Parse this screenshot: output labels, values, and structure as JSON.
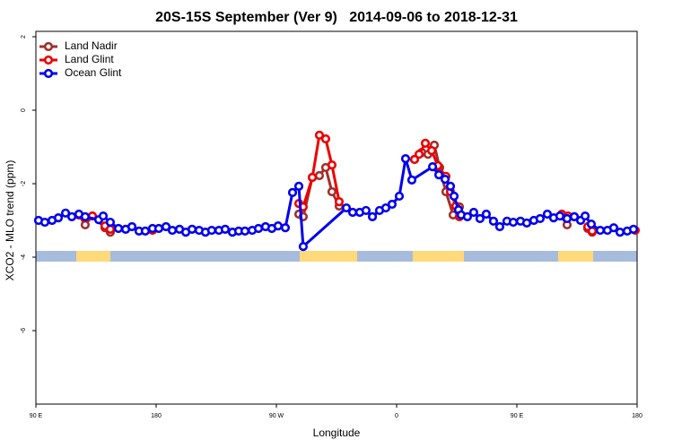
{
  "chart_data": {
    "type": "line",
    "title": "20S-15S September (Ver 9)   2014-09-06 to 2018-12-31",
    "xlabel": "Longitude",
    "ylabel": "XCO2 - MLO trend (ppm)",
    "xlim": [
      90,
      540
    ],
    "xticks": [
      {
        "value": 90,
        "label": "90 E"
      },
      180,
      {
        "value": 270,
        "label": "90 W"
      },
      {
        "value": 360,
        "label": "0"
      },
      {
        "value": 450,
        "label": "90 E"
      },
      {
        "value": 540,
        "label": "180"
      }
    ],
    "ylim": [
      -8,
      2
    ],
    "yticks": [
      2,
      0,
      -2,
      -4,
      -6
    ],
    "legend": "top-left",
    "series": [
      {
        "name": "Land Nadir",
        "color": "#a0302c",
        "x": [
          122.2,
          126.9,
          132.3,
          141.7,
          145.7,
          null,
          286.8,
          290.1,
          296.9,
          302.2,
          306.9,
          311.6,
          317.0,
          null,
          373.4,
          378.8,
          383.5,
          388.2,
          392.2,
          396.9,
          402.3,
          407.0,
          null,
          482.9,
          487.6,
          null,
          503.1,
          506.4
        ],
        "values": [
          -2.85,
          -3.12,
          -2.88,
          -3.2,
          -3.32,
          null,
          -2.83,
          -2.9,
          -1.83,
          -1.78,
          -1.56,
          -2.22,
          -2.61,
          null,
          -1.34,
          -1.15,
          -1.2,
          -0.95,
          -1.56,
          -2.22,
          -2.85,
          -2.63,
          null,
          -2.88,
          -3.12,
          null,
          -3.22,
          -3.32
        ]
      },
      {
        "name": "Land Glint",
        "color": "#ee0000",
        "x": [
          122.2,
          126.9,
          132.3,
          141.7,
          145.7,
          null,
          177.3,
          null,
          286.8,
          290.1,
          296.9,
          302.2,
          306.9,
          311.6,
          317.0,
          null,
          373.4,
          376.8,
          381.5,
          386.2,
          390.9,
          396.9,
          400.3,
          404.3,
          407.0,
          null,
          483.6,
          488.3,
          493.0,
          null,
          503.1,
          506.4,
          null,
          538.6
        ],
        "values": [
          -2.85,
          -2.93,
          -2.88,
          -3.15,
          -3.24,
          null,
          -3.27,
          null,
          -2.54,
          -2.63,
          -1.83,
          -0.68,
          -0.78,
          -1.49,
          -2.49,
          null,
          -1.34,
          -1.2,
          -0.9,
          -1.1,
          -1.51,
          -1.8,
          -2.22,
          -2.61,
          -2.9,
          null,
          -2.83,
          -2.88,
          -2.9,
          null,
          -3.17,
          -3.29,
          null,
          -3.27
        ]
      },
      {
        "name": "Ocean Glint",
        "color": "#0000ee",
        "x": [
          92.0,
          96.7,
          102.1,
          106.8,
          112.2,
          116.9,
          122.2,
          126.9,
          137.0,
          140.4,
          145.7,
          151.8,
          157.2,
          161.9,
          167.2,
          171.9,
          177.3,
          182.0,
          187.4,
          192.1,
          197.5,
          202.2,
          206.9,
          212.2,
          216.9,
          221.6,
          227.0,
          231.7,
          237.1,
          241.8,
          246.5,
          251.9,
          256.6,
          261.9,
          266.6,
          271.3,
          276.7,
          282.1,
          286.8,
          290.1,
          322.4,
          327.1,
          332.4,
          337.1,
          341.9,
          347.2,
          351.9,
          356.6,
          362.0,
          366.7,
          371.4,
          386.9,
          391.6,
          396.3,
          400.3,
          403.0,
          406.3,
          408.3,
          413.0,
          417.7,
          422.4,
          427.1,
          432.5,
          437.2,
          442.6,
          447.3,
          452.7,
          457.4,
          462.7,
          467.4,
          472.8,
          477.5,
          482.2,
          487.6,
          493.0,
          497.7,
          501.1,
          505.7,
          512.4,
          517.8,
          522.5,
          527.2,
          532.6,
          537.3
        ],
        "values": [
          -3.0,
          -3.05,
          -3.0,
          -2.93,
          -2.8,
          -2.9,
          -2.83,
          -2.9,
          -2.98,
          -2.88,
          -3.05,
          -3.22,
          -3.24,
          -3.17,
          -3.29,
          -3.29,
          -3.22,
          -3.22,
          -3.17,
          -3.27,
          -3.24,
          -3.32,
          -3.24,
          -3.27,
          -3.32,
          -3.27,
          -3.27,
          -3.24,
          -3.32,
          -3.29,
          -3.29,
          -3.27,
          -3.22,
          -3.17,
          -3.22,
          -3.15,
          -3.2,
          -2.24,
          -2.07,
          -3.71,
          -2.66,
          -2.78,
          -2.78,
          -2.73,
          -2.9,
          -2.73,
          -2.66,
          -2.56,
          -2.34,
          -1.32,
          -1.9,
          -1.54,
          -1.76,
          -1.88,
          -2.07,
          -2.34,
          -2.71,
          -2.85,
          -2.9,
          -2.78,
          -2.95,
          -2.83,
          -3.02,
          -3.17,
          -3.02,
          -3.05,
          -3.02,
          -3.07,
          -3.0,
          -2.95,
          -2.83,
          -2.93,
          -2.88,
          -2.95,
          -2.9,
          -3.0,
          -2.88,
          -3.1,
          -3.27,
          -3.27,
          -3.2,
          -3.32,
          -3.29,
          -3.24
        ]
      }
    ]
  }
}
